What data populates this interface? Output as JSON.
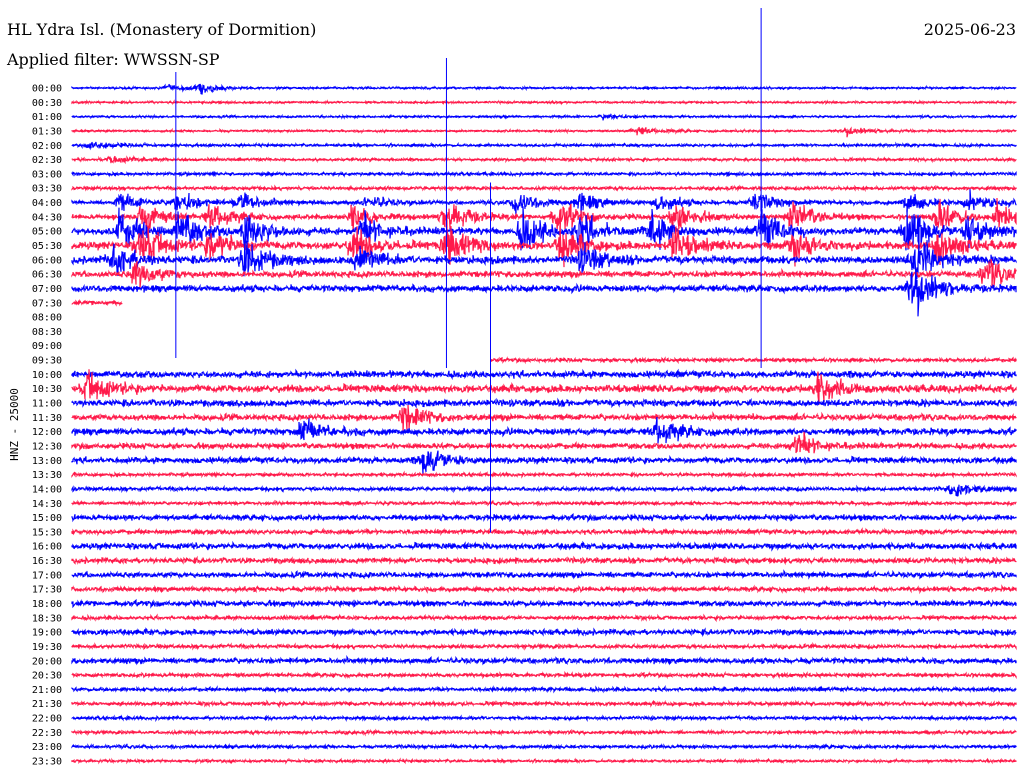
{
  "header": {
    "station": "HL Ydra Isl. (Monastery of Dormition)",
    "date": "2025-06-23",
    "filter": "Applied filter: WWSSN-SP"
  },
  "chart_data": {
    "type": "line",
    "title": "HL Ydra Isl. (Monastery of Dormition)",
    "ylabel": "HNZ - 25000",
    "minutes_per_line": 30,
    "colors": [
      "#0000ff",
      "#ff1a4a"
    ],
    "rows": [
      "00:00",
      "00:30",
      "01:00",
      "01:30",
      "02:00",
      "02:30",
      "03:00",
      "03:30",
      "04:00",
      "04:30",
      "05:00",
      "05:30",
      "06:00",
      "06:30",
      "07:00",
      "07:30",
      "08:00",
      "08:30",
      "09:00",
      "09:30",
      "10:00",
      "10:30",
      "11:00",
      "11:30",
      "12:00",
      "12:30",
      "13:00",
      "13:30",
      "14:00",
      "14:30",
      "15:00",
      "15:30",
      "16:00",
      "16:30",
      "17:00",
      "17:30",
      "18:00",
      "18:30",
      "19:00",
      "19:30",
      "20:00",
      "20:30",
      "21:00",
      "21:30",
      "22:00",
      "22:30",
      "23:00",
      "23:30"
    ],
    "noise_level": [
      0.6,
      0.6,
      0.6,
      0.6,
      0.8,
      0.8,
      0.9,
      1,
      1.2,
      1.5,
      2.2,
      2.5,
      2.5,
      2,
      2.2,
      1.5,
      0,
      0,
      0,
      1.2,
      2.2,
      2.5,
      2.2,
      2,
      2.2,
      1.8,
      2,
      1,
      1.2,
      1,
      1.8,
      1.5,
      2,
      1.8,
      1.8,
      1.5,
      1.8,
      1.2,
      1.8,
      1.2,
      1.8,
      1.2,
      1.2,
      1.2,
      1,
      1,
      1,
      0.8
    ],
    "data_extent_minutes": [
      [
        0,
        30
      ],
      [
        0,
        30
      ],
      [
        0,
        30
      ],
      [
        0,
        30
      ],
      [
        0,
        30
      ],
      [
        0,
        30
      ],
      [
        0,
        30
      ],
      [
        0,
        30
      ],
      [
        0,
        30
      ],
      [
        0,
        30
      ],
      [
        0,
        30
      ],
      [
        0,
        30
      ],
      [
        0,
        30
      ],
      [
        0,
        30
      ],
      [
        0,
        30
      ],
      [
        0,
        1.6
      ],
      [
        0,
        0
      ],
      [
        0,
        0
      ],
      [
        0,
        0
      ],
      [
        13.3,
        30
      ],
      [
        0,
        30
      ],
      [
        0,
        30
      ],
      [
        0,
        30
      ],
      [
        0,
        30
      ],
      [
        0,
        30
      ],
      [
        0,
        30
      ],
      [
        0,
        30
      ],
      [
        0,
        30
      ],
      [
        0,
        30
      ],
      [
        0,
        30
      ],
      [
        0,
        30
      ],
      [
        0,
        30
      ],
      [
        0,
        30
      ],
      [
        0,
        30
      ],
      [
        0,
        30
      ],
      [
        0,
        30
      ],
      [
        0,
        30
      ],
      [
        0,
        30
      ],
      [
        0,
        30
      ],
      [
        0,
        30
      ],
      [
        0,
        30
      ],
      [
        0,
        30
      ],
      [
        0,
        30
      ],
      [
        0,
        30
      ],
      [
        0,
        30
      ],
      [
        0,
        30
      ],
      [
        0,
        30
      ],
      [
        0,
        30
      ]
    ],
    "bursts": [
      [
        0,
        4.0,
        3
      ],
      [
        0,
        3.0,
        2
      ],
      [
        2,
        16.9,
        2
      ],
      [
        3,
        17.9,
        3
      ],
      [
        3,
        24.6,
        3
      ],
      [
        4,
        0.6,
        3
      ],
      [
        5,
        1.2,
        3
      ],
      [
        8,
        1.5,
        6
      ],
      [
        8,
        3.3,
        8
      ],
      [
        8,
        5.3,
        7
      ],
      [
        8,
        9.4,
        5
      ],
      [
        8,
        14.1,
        8
      ],
      [
        8,
        16.1,
        7
      ],
      [
        8,
        18.6,
        6
      ],
      [
        8,
        21.7,
        8
      ],
      [
        8,
        26.5,
        7
      ],
      [
        8,
        28.5,
        7
      ],
      [
        9,
        2.2,
        12
      ],
      [
        9,
        4.4,
        10
      ],
      [
        9,
        8.9,
        10
      ],
      [
        9,
        11.9,
        12
      ],
      [
        9,
        15.4,
        12
      ],
      [
        9,
        19.1,
        10
      ],
      [
        9,
        22.9,
        12
      ],
      [
        9,
        27.5,
        12
      ],
      [
        9,
        29.4,
        10
      ],
      [
        10,
        1.5,
        14
      ],
      [
        10,
        3.4,
        14
      ],
      [
        10,
        5.5,
        14
      ],
      [
        10,
        9.2,
        12
      ],
      [
        10,
        14.3,
        14
      ],
      [
        10,
        16.1,
        12
      ],
      [
        10,
        18.4,
        12
      ],
      [
        10,
        21.9,
        14
      ],
      [
        10,
        26.5,
        16
      ],
      [
        10,
        28.5,
        14
      ],
      [
        11,
        2.2,
        14
      ],
      [
        11,
        4.4,
        12
      ],
      [
        11,
        8.9,
        12
      ],
      [
        11,
        11.9,
        14
      ],
      [
        11,
        15.5,
        12
      ],
      [
        11,
        19.1,
        12
      ],
      [
        11,
        22.9,
        12
      ],
      [
        11,
        27.5,
        14
      ],
      [
        12,
        1.3,
        12
      ],
      [
        12,
        5.5,
        14
      ],
      [
        12,
        9.1,
        10
      ],
      [
        12,
        16.2,
        10
      ],
      [
        12,
        26.8,
        16
      ],
      [
        13,
        2,
        10
      ],
      [
        13,
        29,
        10
      ],
      [
        14,
        26.7,
        18
      ],
      [
        21,
        0.5,
        10
      ],
      [
        21,
        23.7,
        10
      ],
      [
        23,
        10.5,
        10
      ],
      [
        24,
        7.3,
        8
      ],
      [
        24,
        18.6,
        10
      ],
      [
        25,
        23.0,
        10
      ],
      [
        26,
        11.2,
        10
      ],
      [
        28,
        28,
        6
      ]
    ],
    "spikes": [
      [
        0,
        21.9,
        -80,
        280
      ],
      [
        0,
        11.9,
        -30,
        280
      ],
      [
        0,
        3.3,
        -16,
        270
      ],
      [
        8,
        13.3,
        -20,
        330
      ]
    ]
  }
}
